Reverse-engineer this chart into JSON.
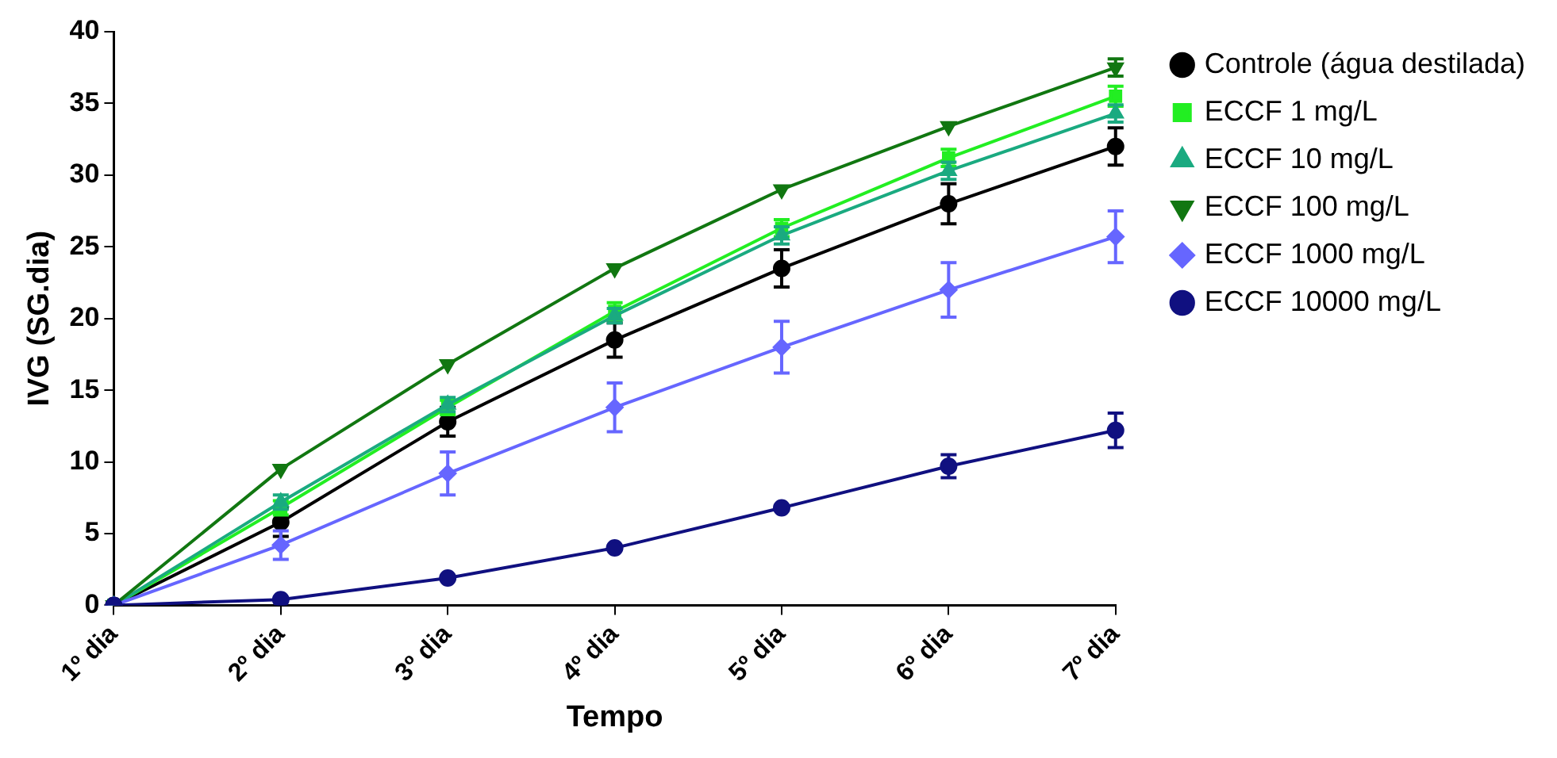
{
  "chart_data": {
    "type": "line",
    "xlabel": "Tempo",
    "ylabel": "IVG (SG.dia)",
    "categories": [
      "1º dia",
      "2º dia",
      "3º dia",
      "4º dia",
      "5º dia",
      "6º dia",
      "7º dia"
    ],
    "ylim": [
      0,
      40
    ],
    "yticks": [
      0,
      5,
      10,
      15,
      20,
      25,
      30,
      35,
      40
    ],
    "grid": false,
    "legend": "right",
    "line_style": "solid",
    "series": [
      {
        "name": "Controle (água destilada)",
        "color": "#000000",
        "marker": "circle",
        "values": [
          0,
          5.8,
          12.8,
          18.5,
          23.5,
          28,
          32
        ],
        "errors": [
          null,
          1,
          1,
          1.2,
          1.3,
          1.4,
          1.3
        ]
      },
      {
        "name": "ECCF 1 mg/L",
        "color": "#22ee22",
        "marker": "square",
        "values": [
          0,
          6.8,
          13.8,
          20.5,
          26.3,
          31.2,
          35.5
        ],
        "errors": [
          null,
          0.5,
          0.5,
          0.6,
          0.6,
          0.6,
          0.7
        ]
      },
      {
        "name": "ECCF 10 mg/L",
        "color": "#1aaa80",
        "marker": "triangle",
        "values": [
          0,
          7.2,
          14,
          20.2,
          25.8,
          30.3,
          34.3
        ],
        "errors": [
          null,
          0.5,
          0.5,
          0.5,
          0.6,
          0.6,
          0.6
        ]
      },
      {
        "name": "ECCF 100 mg/L",
        "color": "#117711",
        "marker": "triangle-down",
        "values": [
          0,
          9.5,
          16.8,
          23.5,
          29,
          33.4,
          37.5
        ],
        "errors": [
          null,
          null,
          null,
          null,
          null,
          null,
          0.6
        ]
      },
      {
        "name": "ECCF 1000 mg/L",
        "color": "#6666ff",
        "marker": "diamond",
        "values": [
          0,
          4.2,
          9.2,
          13.8,
          18,
          22,
          25.7
        ],
        "errors": [
          null,
          1,
          1.5,
          1.7,
          1.8,
          1.9,
          1.8
        ]
      },
      {
        "name": "ECCF 10000 mg/L",
        "color": "#101080",
        "marker": "circle",
        "values": [
          0,
          0.4,
          1.9,
          4,
          6.8,
          9.7,
          12.2
        ],
        "errors": [
          null,
          null,
          null,
          null,
          null,
          0.8,
          1.2
        ]
      }
    ]
  }
}
